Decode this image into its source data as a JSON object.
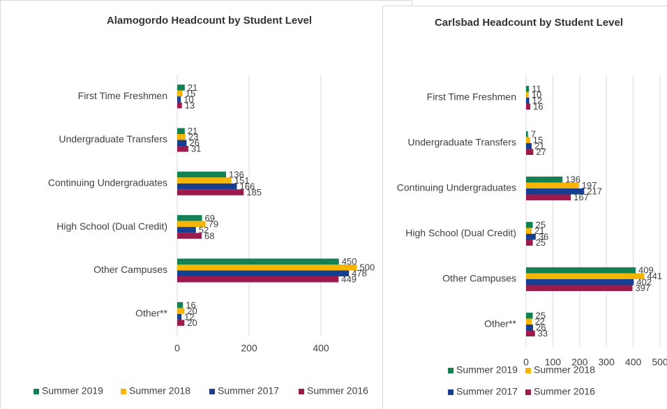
{
  "chart_data": [
    {
      "type": "bar",
      "orientation": "horizontal",
      "title": "Alamogordo Headcount by Student Level",
      "categories": [
        "First Time Freshmen",
        "Undergraduate Transfers",
        "Continuing Undergraduates",
        "High School (Dual Credit)",
        "Other Campuses",
        "Other**"
      ],
      "series": [
        {
          "name": "Summer 2019",
          "color": "#138152",
          "values": [
            21,
            21,
            136,
            69,
            450,
            16
          ]
        },
        {
          "name": "Summer 2018",
          "color": "#f7b500",
          "values": [
            15,
            23,
            151,
            79,
            500,
            20
          ]
        },
        {
          "name": "Summer 2017",
          "color": "#173f8f",
          "values": [
            10,
            26,
            166,
            52,
            478,
            12
          ]
        },
        {
          "name": "Summer 2016",
          "color": "#9c1a4c",
          "values": [
            13,
            31,
            185,
            68,
            449,
            20
          ]
        }
      ],
      "xlim": [
        0,
        500
      ],
      "xticks": [
        0,
        200,
        400
      ],
      "grid": true,
      "legend": "bottom"
    },
    {
      "type": "bar",
      "orientation": "horizontal",
      "title": "Carlsbad Headcount by Student Level",
      "categories": [
        "First Time Freshmen",
        "Undergraduate Transfers",
        "Continuing Undergraduates",
        "High School (Dual Credit)",
        "Other Campuses",
        "Other**"
      ],
      "series": [
        {
          "name": "Summer 2019",
          "color": "#138152",
          "values": [
            11,
            7,
            136,
            25,
            409,
            25
          ]
        },
        {
          "name": "Summer 2018",
          "color": "#f7b500",
          "values": [
            10,
            15,
            197,
            21,
            441,
            22
          ]
        },
        {
          "name": "Summer 2017",
          "color": "#173f8f",
          "values": [
            12,
            21,
            217,
            36,
            402,
            26
          ]
        },
        {
          "name": "Summer 2016",
          "color": "#9c1a4c",
          "values": [
            16,
            27,
            167,
            25,
            397,
            33
          ]
        }
      ],
      "xlim": [
        0,
        500
      ],
      "xticks": [
        0,
        100,
        200,
        300,
        400,
        500
      ],
      "grid": true,
      "legend": "bottom"
    }
  ]
}
